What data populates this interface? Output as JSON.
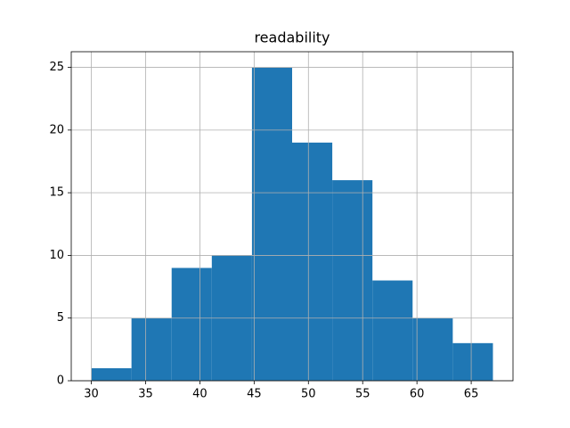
{
  "chart_data": {
    "type": "histogram",
    "title": "readability",
    "bins": [
      30,
      33.7,
      37.4,
      41.1,
      44.8,
      48.5,
      52.2,
      55.9,
      59.6,
      63.3,
      67
    ],
    "values": [
      1,
      5,
      9,
      10,
      25,
      19,
      16,
      8,
      5,
      3
    ],
    "color": "#1f77b4",
    "xlim": [
      28.15,
      68.85
    ],
    "xticks": [
      30,
      35,
      40,
      45,
      50,
      55,
      60,
      65
    ],
    "ylim": [
      0,
      26.25
    ],
    "yticks": [
      0,
      5,
      10,
      15,
      20,
      25
    ],
    "grid": true
  }
}
